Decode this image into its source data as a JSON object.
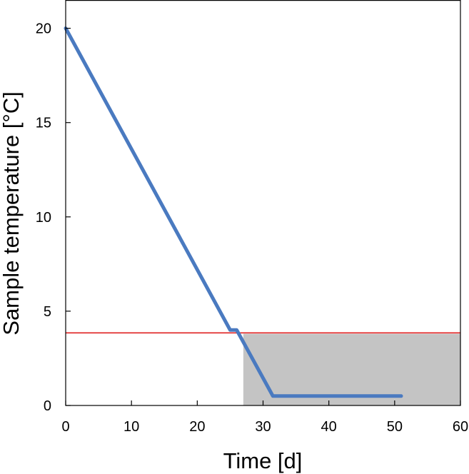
{
  "chart_data": {
    "type": "line",
    "title": "",
    "xlabel": "Time [d]",
    "ylabel": "Sample temperature [°C]",
    "xlim": [
      0,
      60
    ],
    "ylim": [
      0,
      21.5
    ],
    "xticks": [
      0,
      10,
      20,
      30,
      40,
      50,
      60
    ],
    "yticks": [
      0,
      5,
      10,
      15,
      20
    ],
    "grid": false,
    "series": [
      {
        "name": "",
        "color": "#4a7ac0",
        "x": [
          0,
          25,
          26,
          31.5,
          51
        ],
        "y": [
          20,
          4,
          4,
          0.5,
          0.5
        ]
      }
    ],
    "reference_line": {
      "y": 3.85,
      "color": "#e02020"
    },
    "shaded_region": {
      "x": [
        27,
        60
      ],
      "y": [
        0,
        3.8
      ],
      "color": "#c4c4c4"
    }
  }
}
